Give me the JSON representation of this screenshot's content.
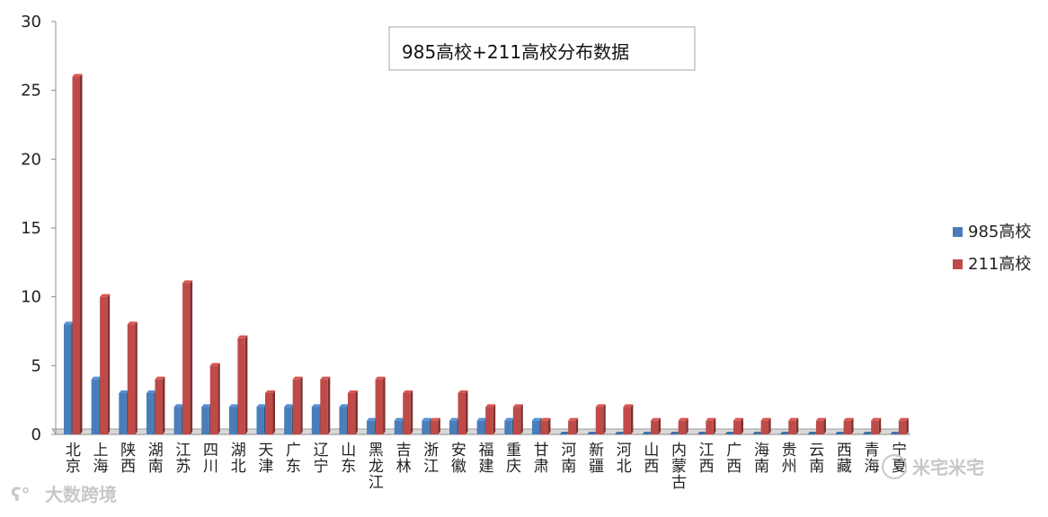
{
  "chart_data": {
    "type": "bar",
    "title": "985高校+211高校分布数据",
    "ylim": [
      0,
      30
    ],
    "yticks": [
      0,
      5,
      10,
      15,
      20,
      25,
      30
    ],
    "categories": [
      "北京",
      "上海",
      "陕西",
      "湖南",
      "江苏",
      "四川",
      "湖北",
      "天津",
      "广东",
      "辽宁",
      "山东",
      "黑龙江",
      "吉林",
      "浙江",
      "安徽",
      "福建",
      "重庆",
      "甘肃",
      "河南",
      "新疆",
      "河北",
      "山西",
      "内蒙古",
      "江西",
      "广西",
      "海南",
      "贵州",
      "云南",
      "西藏",
      "青海",
      "宁夏"
    ],
    "series": [
      {
        "name": "985高校",
        "color": "#4a7ebb",
        "values": [
          8,
          4,
          3,
          3,
          2,
          2,
          2,
          2,
          2,
          2,
          2,
          1,
          1,
          1,
          1,
          1,
          1,
          1,
          0,
          0,
          0,
          0,
          0,
          0,
          0,
          0,
          0,
          0,
          0,
          0,
          0
        ]
      },
      {
        "name": "211高校",
        "color": "#be4b48",
        "values": [
          26,
          10,
          8,
          4,
          11,
          5,
          7,
          3,
          4,
          4,
          3,
          4,
          3,
          1,
          3,
          2,
          2,
          1,
          1,
          2,
          2,
          1,
          1,
          1,
          1,
          1,
          1,
          1,
          1,
          1,
          1
        ]
      }
    ],
    "legend_position": "right",
    "grid": false
  },
  "watermarks": {
    "left": "大数跨境",
    "right": "米宅米宅"
  }
}
